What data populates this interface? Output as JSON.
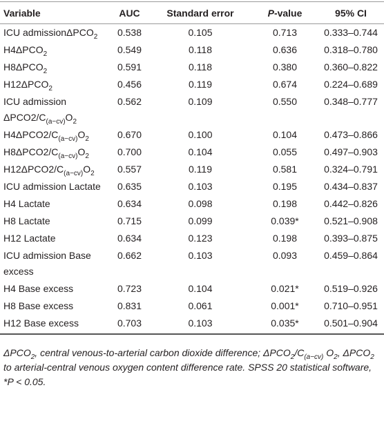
{
  "table": {
    "header": [
      [
        "Variable"
      ],
      [
        "AUC"
      ],
      [
        "Standard error"
      ],
      [
        {
          "i": "P"
        },
        "-value"
      ],
      [
        "95% CI"
      ]
    ],
    "rows": [
      [
        [
          "ICU admissionΔPCO",
          {
            "sub": "2"
          }
        ],
        "0.538",
        "0.105",
        "0.713",
        "0.333–0.744"
      ],
      [
        [
          "H4ΔPCO",
          {
            "sub": "2"
          }
        ],
        "0.549",
        "0.118",
        "0.636",
        "0.318–0.780"
      ],
      [
        [
          "H8ΔPCO",
          {
            "sub": "2"
          }
        ],
        "0.591",
        "0.118",
        "0.380",
        "0.360–0.822"
      ],
      [
        [
          "H12ΔPCO",
          {
            "sub": "2"
          }
        ],
        "0.456",
        "0.119",
        "0.674",
        "0.224–0.689"
      ],
      [
        [
          "ICU admission ΔPCO2/C",
          {
            "sub": "(a−cv)"
          },
          "O",
          {
            "sub": "2"
          }
        ],
        "0.562",
        "0.109",
        "0.550",
        "0.348–0.777"
      ],
      [
        [
          "H4ΔPCO2/C",
          {
            "sub": "(a−cv)"
          },
          "O",
          {
            "sub": "2"
          }
        ],
        "0.670",
        "0.100",
        "0.104",
        "0.473–0.866"
      ],
      [
        [
          "H8ΔPCO2/C",
          {
            "sub": "(a−cv)"
          },
          "O",
          {
            "sub": "2"
          }
        ],
        "0.700",
        "0.104",
        "0.055",
        "0.497–0.903"
      ],
      [
        [
          "H12ΔPCO2/C",
          {
            "sub": "(a−cv)"
          },
          "O",
          {
            "sub": "2"
          }
        ],
        "0.557",
        "0.119",
        "0.581",
        "0.324–0.791"
      ],
      [
        [
          "ICU admission Lactate"
        ],
        "0.635",
        "0.103",
        "0.195",
        "0.434–0.837"
      ],
      [
        [
          "H4 Lactate"
        ],
        "0.634",
        "0.098",
        "0.198",
        "0.442–0.826"
      ],
      [
        [
          "H8 Lactate"
        ],
        "0.715",
        "0.099",
        "0.039*",
        "0.521–0.908"
      ],
      [
        [
          "H12 Lactate"
        ],
        "0.634",
        "0.123",
        "0.198",
        "0.393–0.875"
      ],
      [
        [
          "ICU admission Base excess"
        ],
        "0.662",
        "0.103",
        "0.093",
        "0.459–0.864"
      ],
      [
        [
          "H4 Base excess"
        ],
        "0.723",
        "0.104",
        "0.021*",
        "0.519–0.926"
      ],
      [
        [
          "H8 Base excess"
        ],
        "0.831",
        "0.061",
        "0.001*",
        "0.710–0.951"
      ],
      [
        [
          "H12 Base excess"
        ],
        "0.703",
        "0.103",
        "0.035*",
        "0.501–0.904"
      ]
    ],
    "footnote": [
      "ΔPCO",
      {
        "sub": "2"
      },
      ", central venous-to-arterial carbon dioxide difference; ΔPCO",
      {
        "sub": "2"
      },
      "/C",
      {
        "sub": "(a−cv)"
      },
      " O",
      {
        "sub": "2"
      },
      ", ΔPCO",
      {
        "sub": "2"
      },
      " to arterial-central venous oxygen content difference rate. SPSS 20 statistical software, *P < 0.05."
    ]
  }
}
